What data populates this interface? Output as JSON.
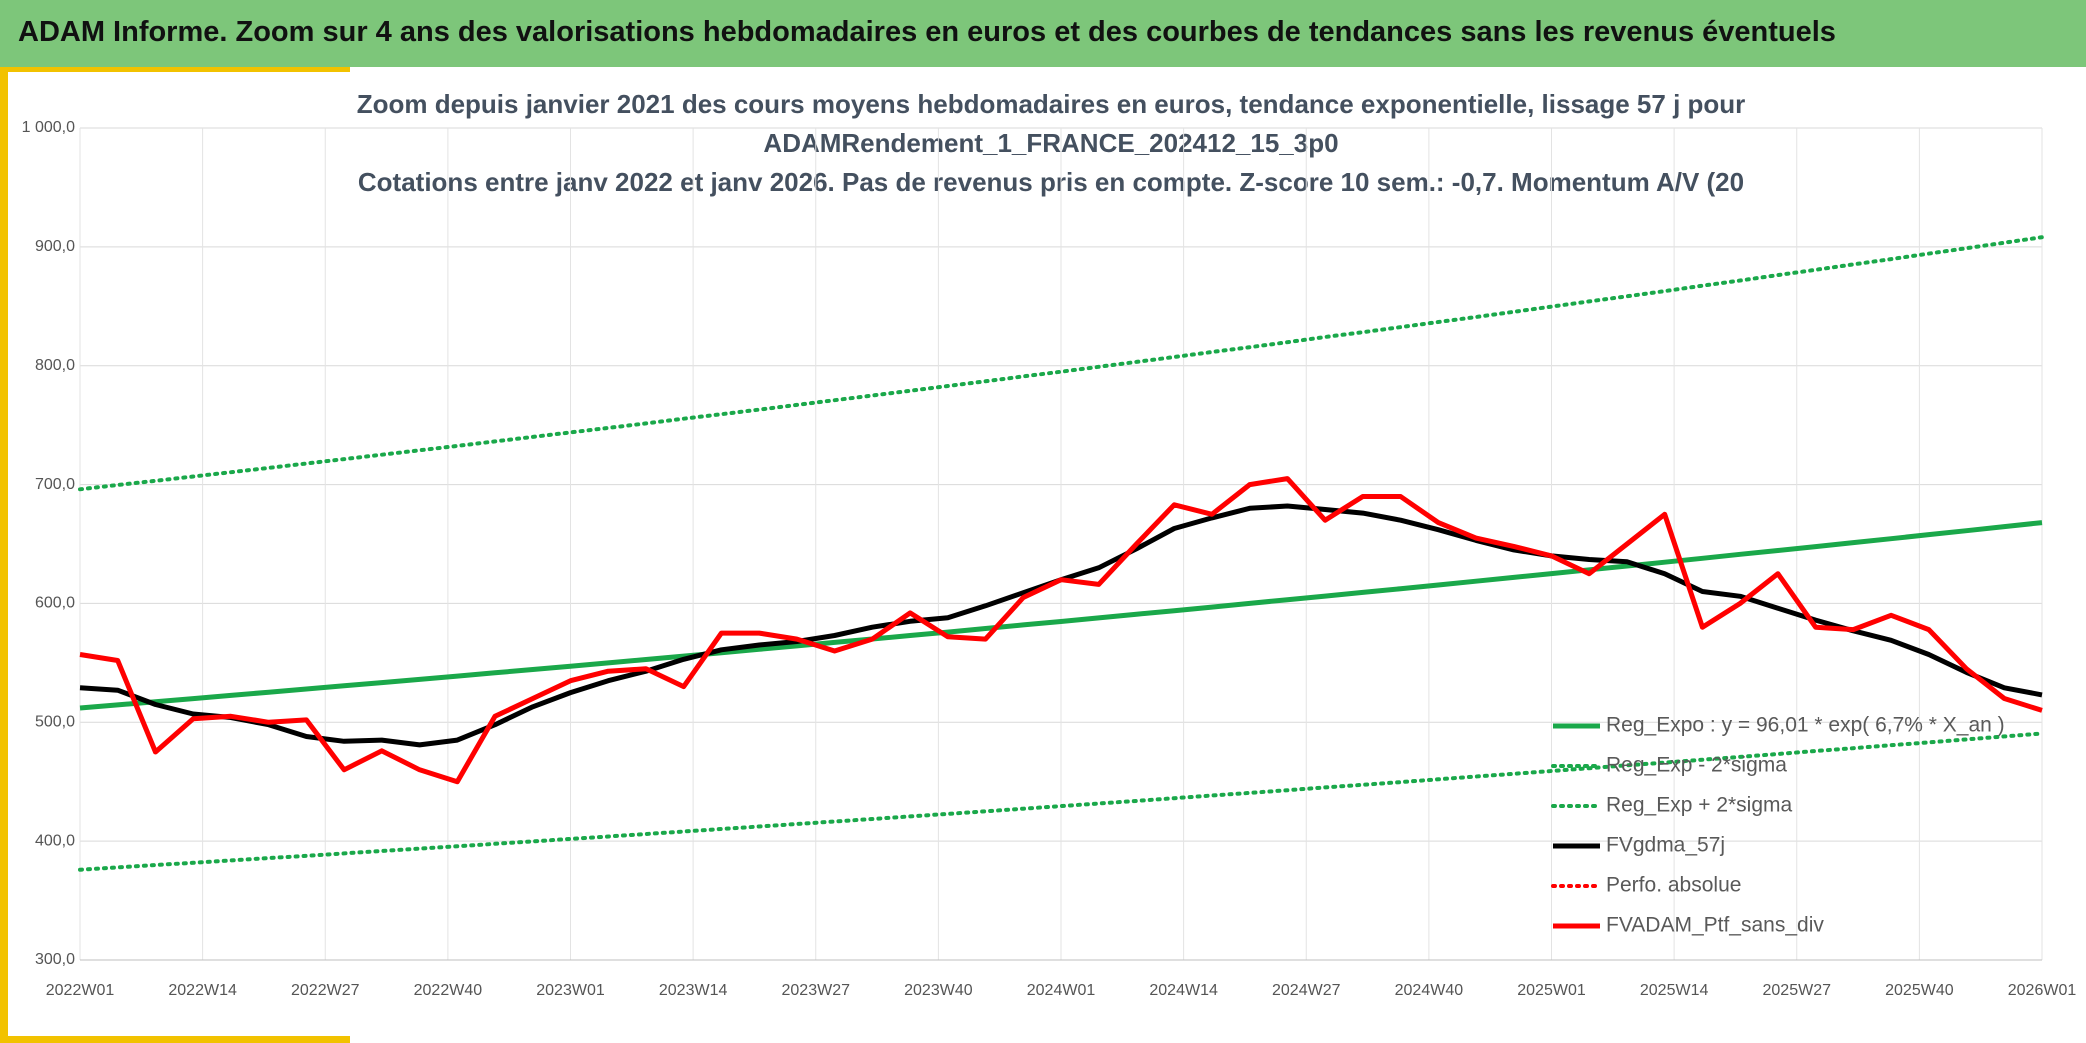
{
  "header": {
    "title": "ADAM Informe. Zoom sur 4 ans des valorisations hebdomadaires en euros et des courbes de tendances sans les revenus éventuels"
  },
  "chart_data": {
    "type": "line",
    "title": [
      "Zoom depuis janvier 2021 des cours moyens hebdomadaires en euros, tendance exponentielle, lissage 57 j pour",
      "ADAMRendement_1_FRANCE_202412_15_3p0",
      "Cotations entre janv 2022 et janv 2026. Pas de revenus pris en compte. Z-score 10 sem.: -0,7. Momentum A/V (20"
    ],
    "grid": true,
    "legend": "bottom-right",
    "xlim": [
      0,
      208
    ],
    "xticks": [
      {
        "value": 0,
        "label": "2022W01"
      },
      {
        "value": 13,
        "label": "2022W14"
      },
      {
        "value": 26,
        "label": "2022W27"
      },
      {
        "value": 39,
        "label": "2022W40"
      },
      {
        "value": 52,
        "label": "2023W01"
      },
      {
        "value": 65,
        "label": "2023W14"
      },
      {
        "value": 78,
        "label": "2023W27"
      },
      {
        "value": 91,
        "label": "2023W40"
      },
      {
        "value": 104,
        "label": "2024W01"
      },
      {
        "value": 117,
        "label": "2024W14"
      },
      {
        "value": 130,
        "label": "2024W27"
      },
      {
        "value": 143,
        "label": "2024W40"
      },
      {
        "value": 156,
        "label": "2025W01"
      },
      {
        "value": 169,
        "label": "2025W14"
      },
      {
        "value": 182,
        "label": "2025W27"
      },
      {
        "value": 195,
        "label": "2025W40"
      },
      {
        "value": 208,
        "label": "2026W01"
      }
    ],
    "ylim": [
      300,
      1000
    ],
    "yticks": [
      {
        "value": 300,
        "label": "300,0"
      },
      {
        "value": 400,
        "label": "400,0"
      },
      {
        "value": 500,
        "label": "500,0"
      },
      {
        "value": 600,
        "label": "600,0"
      },
      {
        "value": 700,
        "label": "700,0"
      },
      {
        "value": 800,
        "label": "800,0"
      },
      {
        "value": 900,
        "label": "900,0"
      },
      {
        "value": 1000,
        "label": "1 000,0"
      }
    ],
    "x": [
      0,
      4,
      8,
      12,
      16,
      20,
      24,
      28,
      32,
      36,
      40,
      44,
      48,
      52,
      56,
      60,
      64,
      68,
      72,
      76,
      80,
      84,
      88,
      92,
      96,
      100,
      104,
      108,
      112,
      116,
      120,
      124,
      128,
      132,
      136,
      140,
      144,
      148,
      152,
      156,
      160,
      164,
      168,
      172,
      176,
      180,
      184,
      188,
      192,
      196,
      200,
      204,
      208
    ],
    "series": [
      {
        "name": "Reg_Expo : y = 96,01 * exp( 6,7% *  X_an )",
        "color": "#1aa84a",
        "style": "solid",
        "values": [
          512.0,
          514.6,
          517.3,
          519.9,
          522.6,
          525.3,
          528.0,
          530.7,
          533.4,
          536.1,
          538.9,
          541.6,
          544.4,
          547.2,
          550.0,
          552.8,
          555.7,
          558.5,
          561.4,
          564.3,
          567.2,
          570.1,
          573.0,
          575.9,
          578.9,
          581.9,
          584.8,
          587.8,
          590.9,
          593.9,
          596.9,
          600.0,
          603.1,
          606.2,
          609.3,
          612.4,
          615.5,
          618.7,
          621.9,
          625.1,
          628.3,
          631.5,
          634.7,
          638.0,
          641.3,
          644.5,
          647.8,
          651.2,
          654.5,
          657.9,
          661.2,
          664.6,
          668.0
        ]
      },
      {
        "name": "Reg_Exp - 2*sigma",
        "color": "#1aa84a",
        "style": "dotted",
        "values": [
          376.0,
          377.9,
          379.9,
          381.8,
          383.8,
          385.7,
          387.7,
          389.7,
          391.7,
          393.7,
          395.7,
          397.8,
          399.8,
          401.9,
          403.9,
          406.0,
          408.1,
          410.2,
          412.3,
          414.4,
          416.5,
          418.6,
          420.8,
          422.9,
          425.1,
          427.3,
          429.5,
          431.7,
          433.9,
          436.1,
          438.4,
          440.6,
          442.9,
          445.2,
          447.4,
          449.7,
          452.0,
          454.4,
          456.7,
          459.0,
          461.4,
          463.8,
          466.1,
          468.5,
          470.9,
          473.3,
          475.8,
          478.2,
          480.7,
          483.1,
          485.6,
          488.1,
          490.6
        ]
      },
      {
        "name": "Reg_Exp + 2*sigma",
        "color": "#1aa84a",
        "style": "dotted",
        "values": [
          696.0,
          699.6,
          703.2,
          706.8,
          710.4,
          714.0,
          717.7,
          721.4,
          725.1,
          728.8,
          732.5,
          736.3,
          740.1,
          743.9,
          747.7,
          751.5,
          755.4,
          759.2,
          763.1,
          767.0,
          771.0,
          774.9,
          778.9,
          782.9,
          786.9,
          791.0,
          795.0,
          799.1,
          803.2,
          807.3,
          811.5,
          815.6,
          819.8,
          824.2,
          828.2,
          832.5,
          836.8,
          841.0,
          845.4,
          849.7,
          854.1,
          858.4,
          862.8,
          867.3,
          871.7,
          876.2,
          880.7,
          885.2,
          889.7,
          894.3,
          898.9,
          903.5,
          908.1
        ]
      },
      {
        "name": "FVgdma_57j",
        "color": "#000000",
        "style": "solid",
        "values": [
          529,
          527,
          515,
          507,
          504,
          498,
          488,
          484,
          485,
          481,
          485,
          498,
          513,
          525,
          535,
          543,
          553,
          561,
          565,
          568,
          573,
          580,
          585,
          588,
          598,
          609,
          620,
          630,
          646,
          663,
          672,
          680,
          682,
          679,
          676,
          670,
          662,
          653,
          645,
          640,
          637,
          635,
          625,
          610,
          606,
          596,
          586,
          577,
          569,
          557,
          542,
          529,
          523
        ]
      },
      {
        "name": "Perfo. absolue",
        "color": "#ff0000",
        "style": "dotted",
        "values": [
          null,
          null,
          null,
          null,
          null,
          null,
          null,
          null,
          null,
          null,
          null,
          null,
          null,
          null,
          null,
          null,
          null,
          null,
          null,
          null,
          null,
          null,
          null,
          null,
          null,
          null,
          null,
          null,
          null,
          null,
          null,
          null,
          null,
          null,
          null,
          null,
          null,
          null,
          null,
          null,
          null,
          null,
          null,
          null,
          null,
          null,
          null,
          null,
          null,
          null,
          null,
          null,
          null
        ]
      },
      {
        "name": "FVADAM_Ptf_sans_div",
        "color": "#ff0000",
        "style": "solid",
        "values": [
          557,
          552,
          475,
          503,
          505,
          500,
          502,
          460,
          476,
          460,
          450,
          505,
          520,
          535,
          543,
          545,
          530,
          575,
          575,
          570,
          560,
          570,
          592,
          572,
          570,
          605,
          620,
          616,
          650,
          683,
          675,
          700,
          705,
          670,
          690,
          690,
          668,
          655,
          648,
          640,
          625,
          650,
          675,
          580,
          600,
          625,
          580,
          578,
          590,
          578,
          545,
          520,
          510
        ]
      }
    ]
  }
}
